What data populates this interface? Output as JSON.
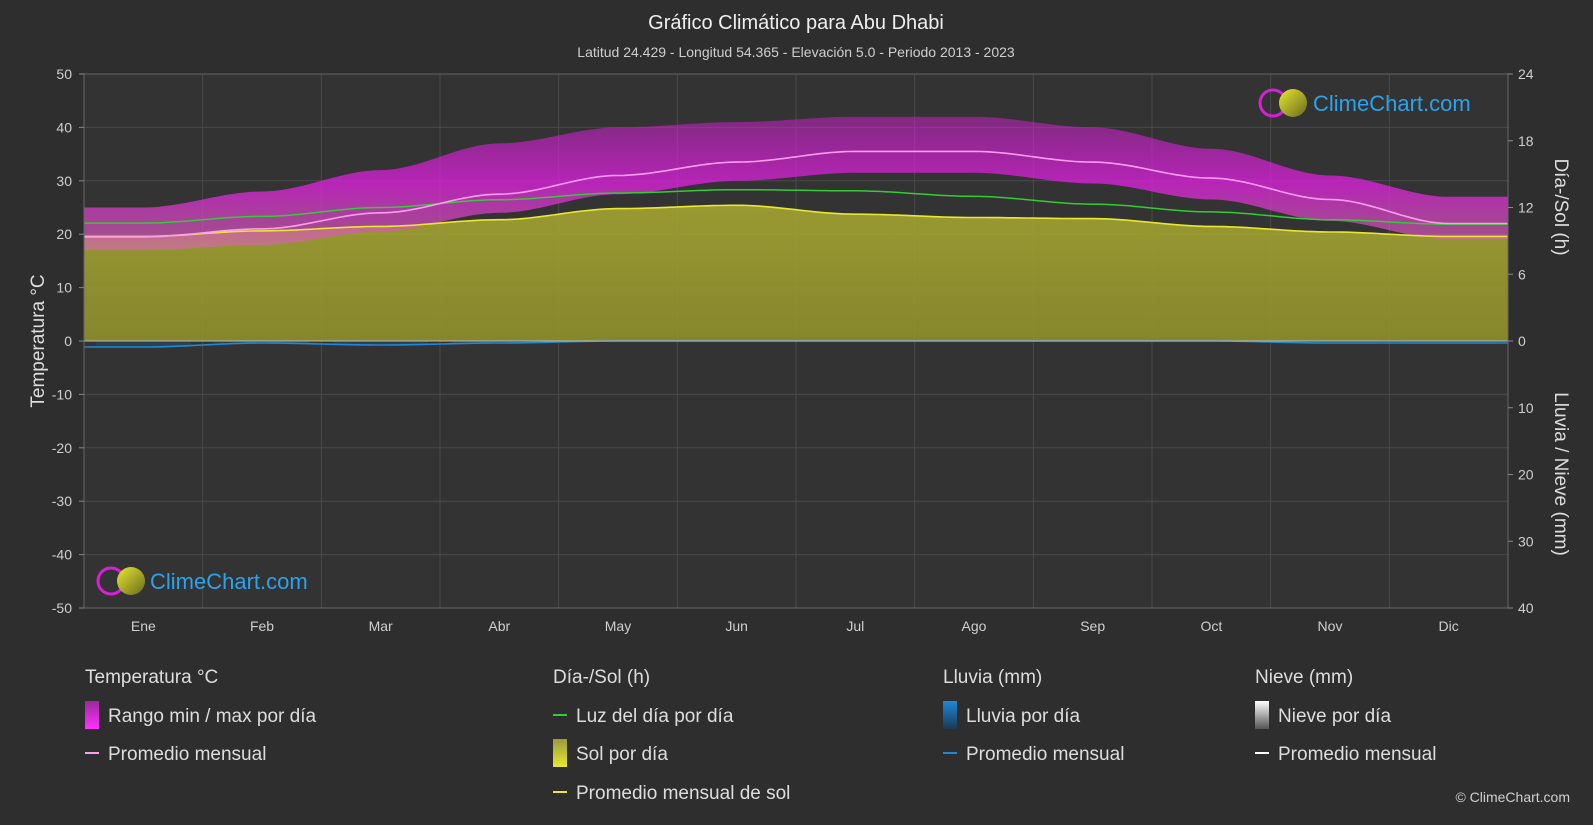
{
  "header": {
    "title": "Gráfico Climático para Abu Dhabi",
    "subtitle": "Latitud 24.429 - Longitud 54.365 - Elevación 5.0 - Periodo 2013 - 2023"
  },
  "axes": {
    "left_title": "Temperatura °C",
    "right_top_title": "Día-/Sol (h)",
    "right_bottom_title": "Lluvia / Nieve (mm)",
    "left_ticks": [
      "50",
      "40",
      "30",
      "20",
      "10",
      "0",
      "-10",
      "-20",
      "-30",
      "-40",
      "-50"
    ],
    "right_top_ticks": [
      "24",
      "18",
      "12",
      "6",
      "0"
    ],
    "right_bottom_ticks": [
      "10",
      "20",
      "30",
      "40"
    ]
  },
  "logo": {
    "text": "ClimeChart.com"
  },
  "legend": {
    "temp_head": "Temperatura °C",
    "temp_range": "Rango min / max por día",
    "temp_avg": "Promedio mensual",
    "sun_head": "Día-/Sol (h)",
    "daylight": "Luz del día por día",
    "sun_day": "Sol por día",
    "sun_avg": "Promedio mensual de sol",
    "rain_head": "Lluvia (mm)",
    "rain_day": "Lluvia por día",
    "rain_avg": "Promedio mensual",
    "snow_head": "Nieve (mm)",
    "snow_day": "Nieve por día",
    "snow_avg": "Promedio mensual"
  },
  "copyright": "© ClimeChart.com",
  "colors": {
    "background": "#2e2e2e",
    "plot_bg": "#333333",
    "temp_range": "#d81ed8",
    "temp_avg": "#ff9cf0",
    "daylight": "#33cc33",
    "sunshine_fill": "#9a9a2c",
    "sunshine_avg": "#e8e830",
    "rain": "#1e88d8",
    "snow": "#ffffff",
    "logo_text": "#2aa3ec"
  },
  "chart_data": {
    "type": "line",
    "categories": [
      "Ene",
      "Feb",
      "Mar",
      "Abr",
      "May",
      "Jun",
      "Jul",
      "Ago",
      "Sep",
      "Oct",
      "Nov",
      "Dic"
    ],
    "temp_ylim": [
      -50,
      50
    ],
    "sun_ylim": [
      0,
      24
    ],
    "rain_ylim": [
      0,
      40
    ],
    "series": [
      {
        "name": "Promedio mensual",
        "axis": "temperature",
        "values": [
          19.5,
          21,
          24,
          27.5,
          31,
          33.5,
          35.5,
          35.5,
          33.5,
          30.5,
          26.5,
          22
        ]
      },
      {
        "name": "Rango min / max por día",
        "axis": "temperature",
        "min": [
          17,
          18,
          20.5,
          24,
          27.5,
          30,
          31.5,
          31.5,
          29.5,
          26.5,
          22.5,
          19
        ],
        "max": [
          25,
          28,
          32,
          37,
          40,
          41,
          42,
          42,
          40,
          36,
          31,
          27
        ]
      },
      {
        "name": "Luz del día por día",
        "axis": "sun",
        "values": [
          10.6,
          11.2,
          12.0,
          12.7,
          13.3,
          13.6,
          13.5,
          13.0,
          12.3,
          11.6,
          10.9,
          10.5
        ]
      },
      {
        "name": "Promedio mensual de sol",
        "axis": "sun",
        "values": [
          9.4,
          9.9,
          10.3,
          10.9,
          11.9,
          12.2,
          11.4,
          11.1,
          11.0,
          10.3,
          9.8,
          9.4
        ]
      },
      {
        "name": "Promedio mensual",
        "axis": "rain",
        "values": [
          0.9,
          0.3,
          0.6,
          0.3,
          0.0,
          0.0,
          0.0,
          0.0,
          0.0,
          0.0,
          0.3,
          0.3
        ]
      }
    ]
  }
}
